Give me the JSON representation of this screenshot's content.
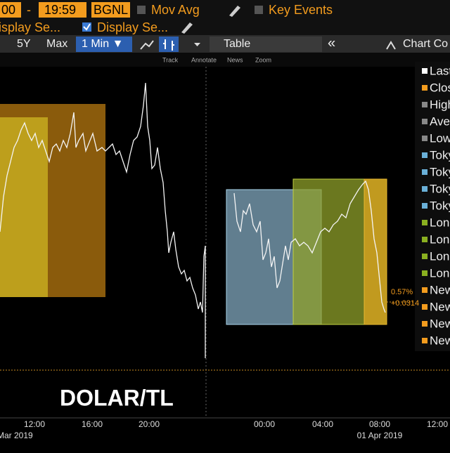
{
  "toolbar": {
    "start_time": "00",
    "dash": "-",
    "end_time": "19:59",
    "source": "BGNL",
    "mov_avg": "Mov Avg",
    "key_events": "Key Events",
    "display_1": "isplay Se...",
    "display_2": "Display Se...",
    "range_5y": "5Y",
    "range_max": "Max",
    "interval": "1 Min ▼",
    "table": "Table",
    "collapse": "«",
    "chart_config": "Chart Co"
  },
  "tools": [
    "Track",
    "Annotate",
    "News",
    "Zoom"
  ],
  "legend": [
    "Last",
    "Clos",
    "High",
    "Aver",
    "Low",
    "Toky",
    "Toky",
    "Toky",
    "Toky",
    "Lond",
    "Lond",
    "Lond",
    "Lond",
    "New",
    "New",
    "New",
    "New"
  ],
  "annotation": {
    "percent": "0.57%",
    "change": "+0.0314"
  },
  "caption": "DOLAR/TL",
  "x_axis": {
    "times": [
      "12:00",
      "16:00",
      "20:00",
      "00:00",
      "04:00",
      "08:00",
      "12:00"
    ],
    "dates": [
      "Mar 2019",
      "01 Apr 2019"
    ]
  }
}
